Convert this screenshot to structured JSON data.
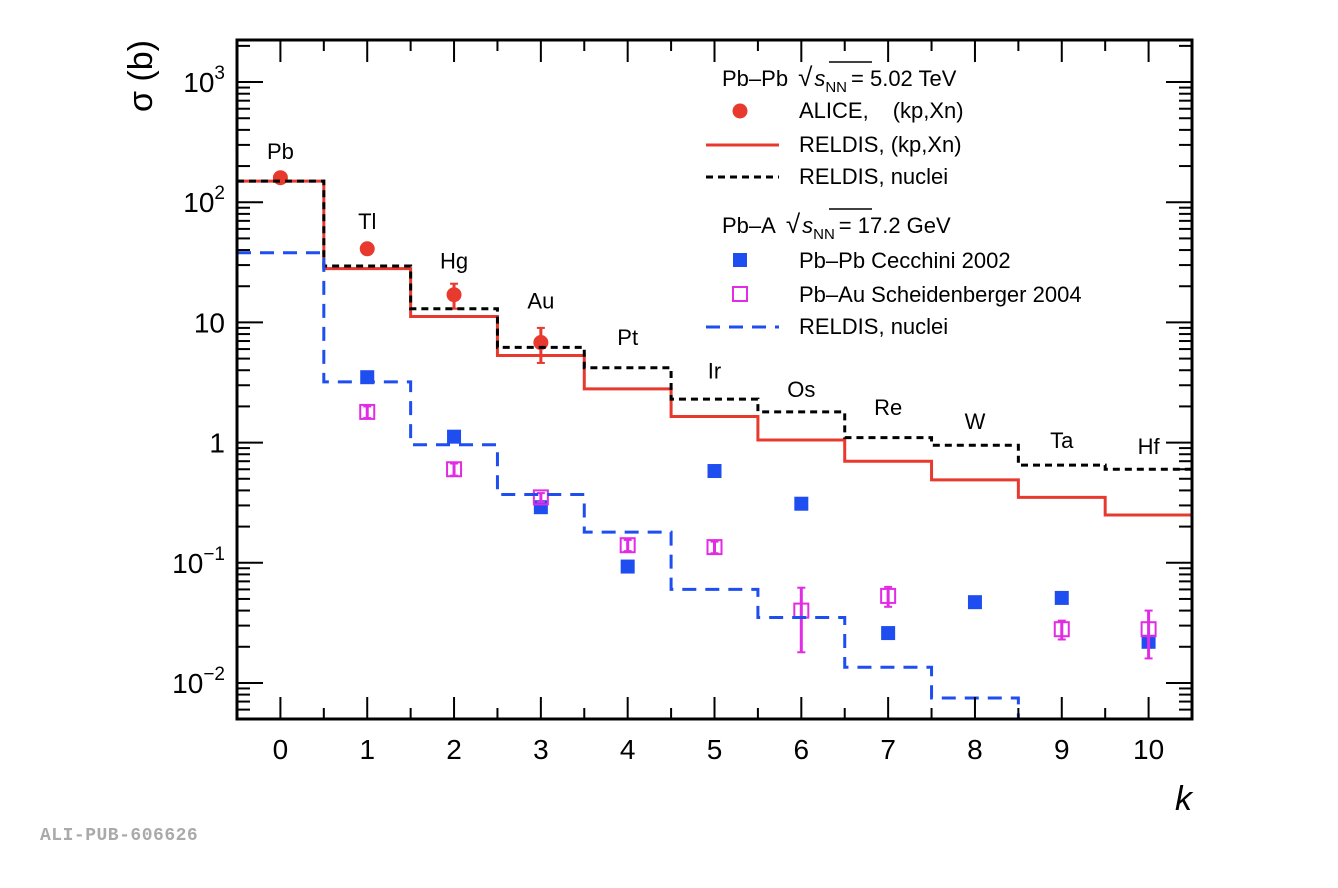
{
  "pub_id": "ALI-PUB-606626",
  "chart_data": {
    "type": "line",
    "xlabel": "k",
    "ylabel_sym": "σ",
    "ylabel_unit": "(b)",
    "xlim": [
      -0.5,
      10.5
    ],
    "ylim_log10": [
      -2.3,
      3.35
    ],
    "x_ticks": [
      0,
      1,
      2,
      3,
      4,
      5,
      6,
      7,
      8,
      9,
      10
    ],
    "y_ticks": [
      {
        "value": 0.01,
        "base": "10",
        "exp": "−2",
        "plain": ""
      },
      {
        "value": 0.1,
        "base": "10",
        "exp": "−1",
        "plain": ""
      },
      {
        "value": 1,
        "base": "",
        "exp": "",
        "plain": "1"
      },
      {
        "value": 10,
        "base": "",
        "exp": "",
        "plain": "10"
      },
      {
        "value": 100,
        "base": "10",
        "exp": "2",
        "plain": ""
      },
      {
        "value": 1000,
        "base": "10",
        "exp": "3",
        "plain": ""
      }
    ],
    "element_labels": [
      {
        "k": 0,
        "sigma": 230,
        "text": "Pb"
      },
      {
        "k": 1,
        "sigma": 60,
        "text": "Tl"
      },
      {
        "k": 2,
        "sigma": 28,
        "text": "Hg"
      },
      {
        "k": 3,
        "sigma": 13,
        "text": "Au"
      },
      {
        "k": 4,
        "sigma": 6.5,
        "text": "Pt"
      },
      {
        "k": 5,
        "sigma": 3.4,
        "text": "Ir"
      },
      {
        "k": 6,
        "sigma": 2.4,
        "text": "Os"
      },
      {
        "k": 7,
        "sigma": 1.7,
        "text": "Re"
      },
      {
        "k": 8,
        "sigma": 1.3,
        "text": "W"
      },
      {
        "k": 9,
        "sigma": 0.9,
        "text": "Ta"
      },
      {
        "k": 10,
        "sigma": 0.8,
        "text": "Hf"
      }
    ],
    "series": [
      {
        "name": "ALICE, (kp,Xn)",
        "kind": "points",
        "marker": "circle",
        "color": "#e8392e",
        "x": [
          0,
          1,
          2,
          3
        ],
        "values": [
          160,
          41,
          17,
          6.8
        ],
        "err_low": [
          0,
          0,
          4,
          2.2
        ],
        "err_high": [
          0,
          0,
          4,
          2.2
        ]
      },
      {
        "name": "RELDIS, (kp,Xn)",
        "kind": "step",
        "color": "#e8392e",
        "dash": "none",
        "x": [
          0,
          1,
          2,
          3,
          4,
          5,
          6,
          7,
          8,
          9,
          10
        ],
        "values": [
          150,
          28,
          11.2,
          5.3,
          2.8,
          1.65,
          1.05,
          0.7,
          0.49,
          0.35,
          0.25
        ]
      },
      {
        "name": "RELDIS, nuclei",
        "kind": "step",
        "color": "#000000",
        "dash": "7,5",
        "x": [
          0,
          1,
          2,
          3,
          4,
          5,
          6,
          7,
          8,
          9,
          10
        ],
        "values": [
          150,
          29.5,
          13,
          6.2,
          4.2,
          2.3,
          1.8,
          1.1,
          0.95,
          0.65,
          0.6
        ]
      },
      {
        "name": "Pb–Pb Cecchini 2002",
        "kind": "points",
        "marker": "square-filled",
        "color": "#1f4ef0",
        "x": [
          1,
          2,
          3,
          4,
          5,
          6,
          7,
          8,
          9,
          10
        ],
        "values": [
          3.5,
          1.12,
          0.29,
          0.093,
          0.58,
          0.31,
          0.026,
          0.047,
          0.051,
          0.022
        ],
        "err_low": [
          0,
          0,
          0,
          0,
          0,
          0,
          0,
          0,
          0,
          0
        ],
        "err_high": [
          0,
          0,
          0,
          0,
          0,
          0,
          0,
          0,
          0,
          0
        ]
      },
      {
        "name": "Pb–Au Scheidenberger 2004",
        "kind": "points",
        "marker": "square-open",
        "color": "#e22be5",
        "x": [
          1,
          2,
          3,
          4,
          5,
          6,
          7,
          9,
          10
        ],
        "values": [
          1.8,
          0.6,
          0.35,
          0.14,
          0.135,
          0.04,
          0.053,
          0.028,
          0.028
        ],
        "err_low": [
          0.2,
          0.07,
          0.03,
          0.015,
          0.015,
          0.022,
          0.01,
          0.005,
          0.012
        ],
        "err_high": [
          0.2,
          0.07,
          0.03,
          0.015,
          0.015,
          0.022,
          0.01,
          0.005,
          0.012
        ]
      },
      {
        "name": "RELDIS, nuclei",
        "kind": "step",
        "color": "#1f4ef0",
        "dash": "14,9",
        "x": [
          0,
          1,
          2,
          3,
          4,
          5,
          6,
          7,
          8,
          9,
          10
        ],
        "values": [
          38,
          3.2,
          0.96,
          0.37,
          0.18,
          0.06,
          0.035,
          0.0135,
          0.0075,
          0.005,
          0.005
        ]
      }
    ],
    "legend": {
      "placement": "top-right",
      "group1_prefix": "Pb–Pb",
      "group1_energy_sym": "s",
      "group1_energy_sub": "NN",
      "group1_energy_value": "= 5.02 TeV",
      "group2_prefix": "Pb–A",
      "group2_energy_sym": "s",
      "group2_energy_sub": "NN",
      "group2_energy_value": "= 17.2 GeV",
      "alice_label_main": "ALICE,",
      "alice_label_suffix": "(kp,Xn)",
      "reldis_kp_label": "RELDIS, (kp,Xn)",
      "reldis_nuclei_label": "RELDIS, nuclei",
      "cecchini_label": "Pb–Pb Cecchini 2002",
      "scheidenberger_label": "Pb–Au Scheidenberger 2004",
      "reldis_nuclei_label_2": "RELDIS, nuclei"
    }
  }
}
